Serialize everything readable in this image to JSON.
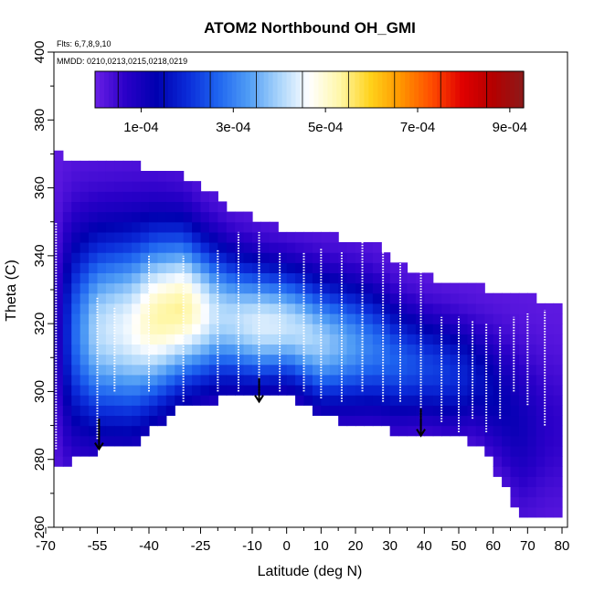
{
  "chart_data": {
    "type": "heatmap",
    "title": "ATOM2 Northbound OH_GMI",
    "subtitle_flights": "Flts: 6,7,8,9,10",
    "subtitle_dates": "MMDD: 0210,0213,0215,0218,0219",
    "xlabel": "Latitude (deg N)",
    "ylabel": "Theta (C)",
    "xlim": [
      -70,
      80
    ],
    "ylim": [
      260,
      400
    ],
    "x_ticks": [
      "-70",
      "-55",
      "-40",
      "-25",
      "-10",
      "0",
      "10",
      "20",
      "30",
      "40",
      "50",
      "60",
      "70",
      "80"
    ],
    "y_ticks": [
      "260",
      "280",
      "300",
      "320",
      "340",
      "360",
      "380",
      "400"
    ],
    "colorbar": {
      "min": 0.0,
      "max": 0.00093,
      "tick_labels": [
        "1e-04",
        "3e-04",
        "5e-04",
        "7e-04",
        "9e-04"
      ],
      "tick_values": [
        0.0001,
        0.0003,
        0.0005,
        0.0007,
        0.0009
      ],
      "colors": [
        "#6a1fe6",
        "#2a00c8",
        "#0000b0",
        "#0a2ad8",
        "#1e64f0",
        "#4f9cf5",
        "#a8d4fb",
        "#ffffff",
        "#fff7a8",
        "#ffd21a",
        "#ff9500",
        "#ff4c00",
        "#e00000",
        "#b40000",
        "#8c1a1a"
      ]
    },
    "surface": {
      "latitude": [
        -67,
        -62,
        -55,
        -45,
        -38,
        -30,
        -25,
        -20,
        -15,
        -10,
        -5,
        0,
        5,
        10,
        18,
        25,
        32,
        40,
        48,
        55,
        62,
        68,
        72,
        75,
        80
      ],
      "top_theta": [
        370,
        369,
        367,
        367,
        366,
        364,
        360,
        357,
        353,
        351,
        349,
        348,
        347,
        346,
        345,
        344,
        338,
        334,
        332,
        331,
        330,
        329,
        328,
        327,
        326
      ],
      "bottom_theta": [
        277,
        280,
        283,
        284,
        290,
        296,
        297,
        297.5,
        298,
        298,
        298.5,
        299,
        296,
        292,
        291,
        290,
        288,
        288,
        286,
        285,
        275,
        262,
        262,
        262,
        262
      ],
      "oh_max": [
        5e-05,
        0.00025,
        0.0004,
        0.00045,
        0.00052,
        0.00053,
        0.00047,
        0.0004,
        0.0004,
        0.00042,
        0.00043,
        0.00041,
        0.0004,
        0.00038,
        0.00033,
        0.00028,
        0.00025,
        0.00022,
        0.0002,
        0.00015,
        0.00012,
        0.0001,
        8e-05,
        6e-05,
        5e-05
      ]
    },
    "flight_profiles": [
      {
        "latitude": -67,
        "theta_min": 283,
        "theta_max": 350
      },
      {
        "latitude": -55,
        "theta_min": 286,
        "theta_max": 328
      },
      {
        "latitude": -50,
        "theta_min": 300,
        "theta_max": 325
      },
      {
        "latitude": -40,
        "theta_min": 300,
        "theta_max": 340
      },
      {
        "latitude": -30,
        "theta_min": 297,
        "theta_max": 340
      },
      {
        "latitude": -20,
        "theta_min": 300,
        "theta_max": 342
      },
      {
        "latitude": -14,
        "theta_min": 300,
        "theta_max": 347
      },
      {
        "latitude": -8,
        "theta_min": 299,
        "theta_max": 347
      },
      {
        "latitude": -2,
        "theta_min": 300,
        "theta_max": 341
      },
      {
        "latitude": 5,
        "theta_min": 300,
        "theta_max": 341
      },
      {
        "latitude": 10,
        "theta_min": 298,
        "theta_max": 342
      },
      {
        "latitude": 16,
        "theta_min": 297,
        "theta_max": 341
      },
      {
        "latitude": 22,
        "theta_min": 300,
        "theta_max": 345
      },
      {
        "latitude": 28,
        "theta_min": 297,
        "theta_max": 342
      },
      {
        "latitude": 33,
        "theta_min": 297,
        "theta_max": 340
      },
      {
        "latitude": 39,
        "theta_min": 292,
        "theta_max": 335
      },
      {
        "latitude": 45,
        "theta_min": 291,
        "theta_max": 322
      },
      {
        "latitude": 50,
        "theta_min": 288,
        "theta_max": 322
      },
      {
        "latitude": 54,
        "theta_min": 292,
        "theta_max": 321
      },
      {
        "latitude": 58,
        "theta_min": 288,
        "theta_max": 320
      },
      {
        "latitude": 62,
        "theta_min": 292,
        "theta_max": 319
      },
      {
        "latitude": 66,
        "theta_min": 300,
        "theta_max": 322
      },
      {
        "latitude": 70,
        "theta_min": 296,
        "theta_max": 323
      },
      {
        "latitude": 75,
        "theta_min": 290,
        "theta_max": 324
      }
    ],
    "arrows": [
      {
        "latitude": -54.5,
        "theta_tip": 283,
        "theta_tail": 292
      },
      {
        "latitude": -8,
        "theta_tip": 297,
        "theta_tail": 304
      },
      {
        "latitude": 39,
        "theta_tip": 287,
        "theta_tail": 295
      }
    ],
    "grid": false,
    "legend": "colorbar top"
  }
}
